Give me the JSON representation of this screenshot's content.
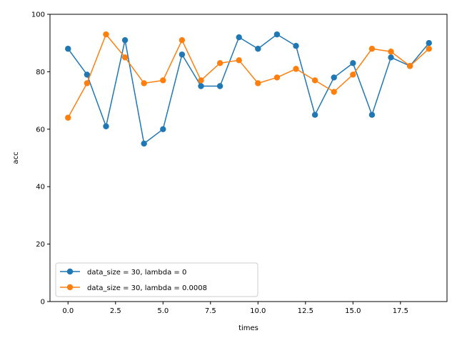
{
  "chart_data": {
    "type": "line",
    "title": "",
    "xlabel": "times",
    "ylabel": "acc",
    "xlim": [
      -0.95,
      19.95
    ],
    "ylim": [
      0,
      100
    ],
    "x_ticks": [
      0.0,
      2.5,
      5.0,
      7.5,
      10.0,
      12.5,
      15.0,
      17.5
    ],
    "x_tick_labels": [
      "0.0",
      "2.5",
      "5.0",
      "7.5",
      "10.0",
      "12.5",
      "15.0",
      "17.5"
    ],
    "y_ticks": [
      0,
      20,
      40,
      60,
      80,
      100
    ],
    "y_tick_labels": [
      "0",
      "20",
      "40",
      "60",
      "80",
      "100"
    ],
    "grid": false,
    "legend_position": "lower-left",
    "x": [
      0,
      1,
      2,
      3,
      4,
      5,
      6,
      7,
      8,
      9,
      10,
      11,
      12,
      13,
      14,
      15,
      16,
      17,
      18,
      19
    ],
    "series": [
      {
        "name": "data_size = 30, lambda = 0",
        "color": "#1f77b4",
        "marker": "circle",
        "values": [
          88,
          79,
          61,
          91,
          55,
          60,
          86,
          75,
          75,
          92,
          88,
          93,
          89,
          65,
          78,
          83,
          65,
          85,
          82,
          90
        ]
      },
      {
        "name": "data_size = 30, lambda = 0.0008",
        "color": "#ff7f0e",
        "marker": "circle",
        "values": [
          64,
          76,
          93,
          85,
          76,
          77,
          91,
          77,
          83,
          84,
          76,
          78,
          81,
          77,
          73,
          79,
          88,
          87,
          82,
          88
        ]
      }
    ]
  }
}
